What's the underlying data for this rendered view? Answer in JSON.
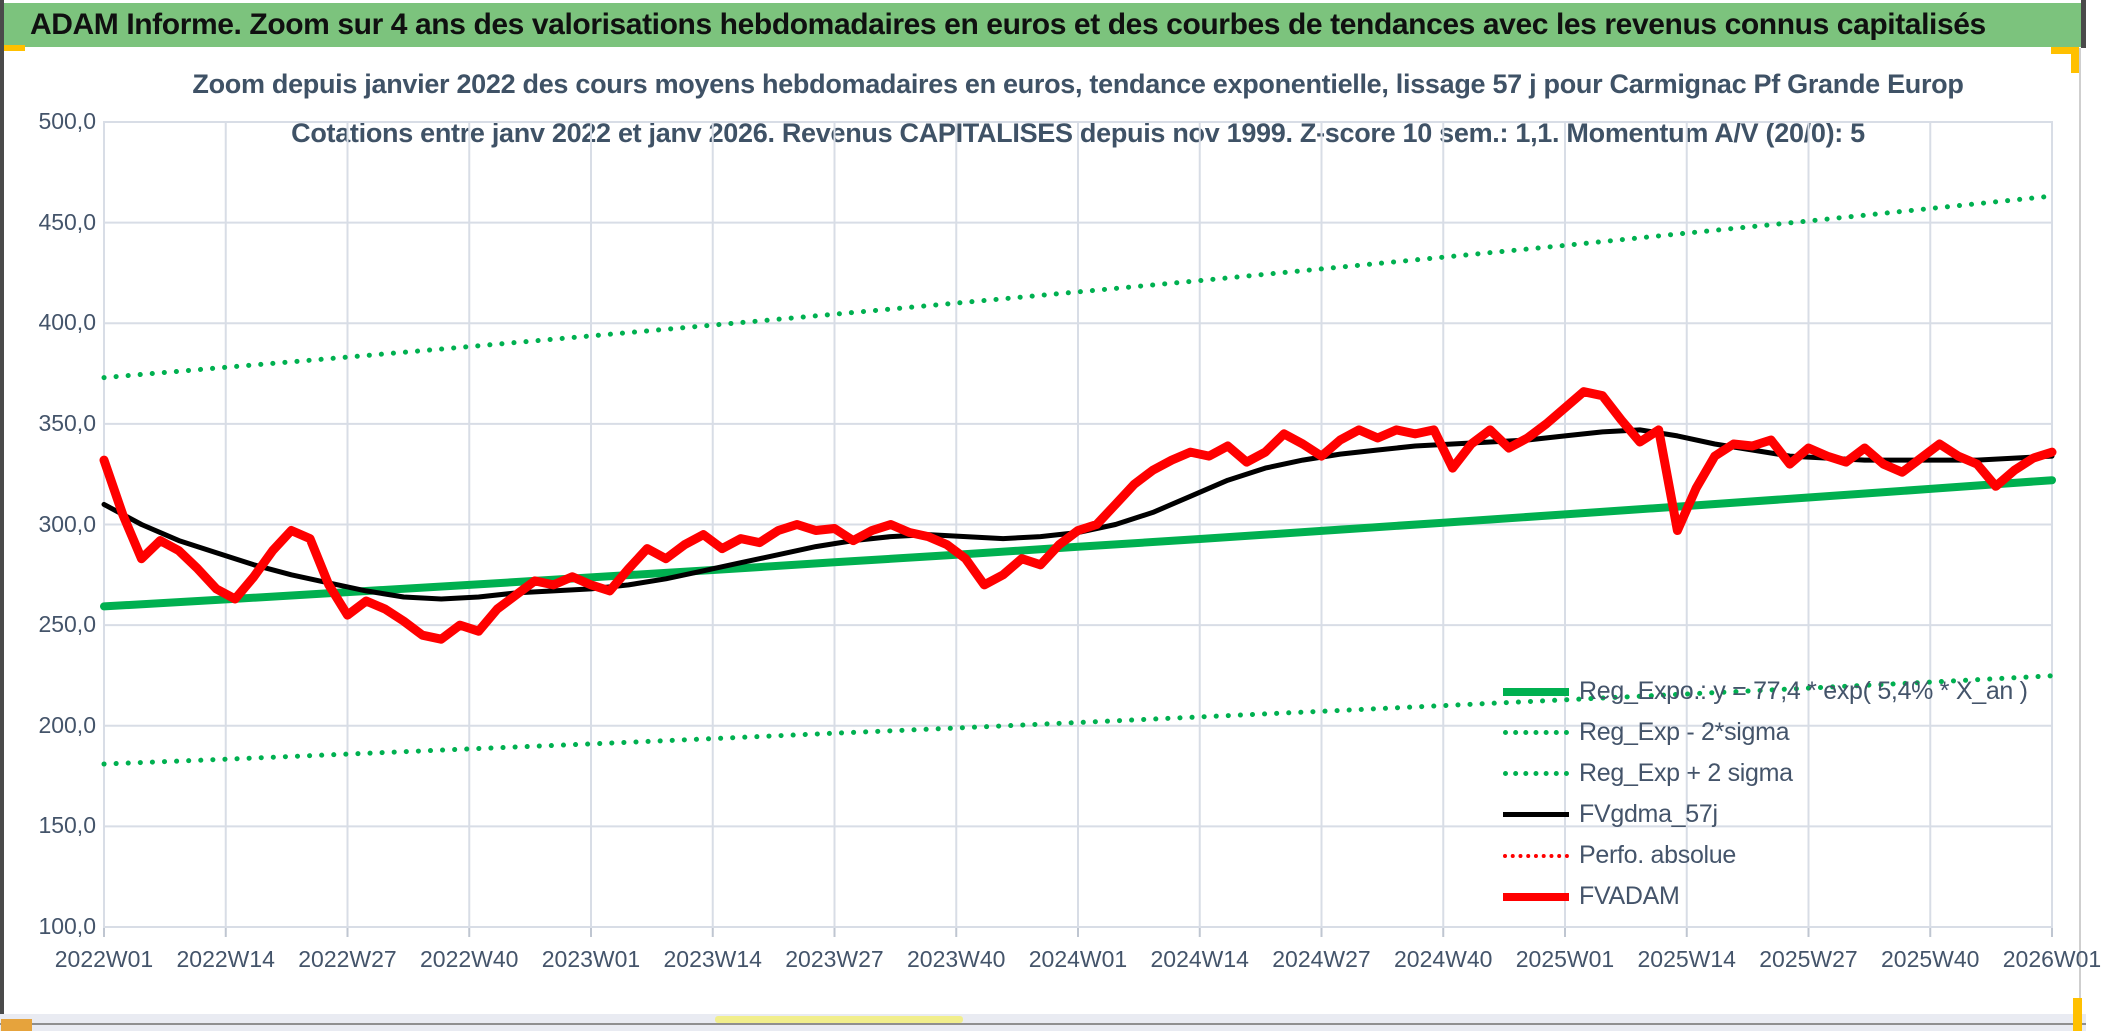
{
  "header": {
    "title": "ADAM Informe. Zoom sur 4 ans des valorisations hebdomadaires en euros et des courbes de tendances avec les revenus connus capitalisés",
    "bg_color": "#7CC37D"
  },
  "chart_data": {
    "type": "line",
    "title_line1": "Zoom depuis janvier 2022 des cours moyens hebdomadaires en euros, tendance exponentielle, lissage 57 j pour Carmignac Pf Grande Europ",
    "title_line2": "Cotations entre janv 2022 et janv 2026. Revenus CAPITALISES depuis nov 1999. Z-score 10 sem.: 1,1. Momentum A/V (20/0): 5",
    "grid": true,
    "legend_position": "inside-bottom-right",
    "x_axis": {
      "unit": "ISO week",
      "tick_labels": [
        "2022W01",
        "2022W14",
        "2022W27",
        "2022W40",
        "2023W01",
        "2023W14",
        "2023W27",
        "2023W40",
        "2024W01",
        "2024W14",
        "2024W27",
        "2024W40",
        "2025W01",
        "2025W14",
        "2025W27",
        "2025W40",
        "2026W01"
      ],
      "tick_weeks": [
        0,
        13,
        26,
        39,
        52,
        65,
        78,
        91,
        104,
        117,
        130,
        143,
        156,
        169,
        182,
        195,
        208
      ],
      "week_range": [
        0,
        208
      ]
    },
    "y_axis": {
      "tick_labels": [
        "500,0",
        "450,0",
        "400,0",
        "350,0",
        "300,0",
        "250,0",
        "200,0",
        "150,0",
        "100,0"
      ],
      "tick_values": [
        500,
        450,
        400,
        350,
        300,
        250,
        200,
        150,
        100
      ],
      "ylim": [
        100,
        500
      ]
    },
    "colors": {
      "green": "#00B050",
      "red": "#FF0000",
      "black": "#000000",
      "grid": "#D8DDE6",
      "tick_text": "#44546A"
    },
    "series": [
      {
        "name": "Reg_Expo.: y = 77,4 * exp( 5,4% * X_an )",
        "color": "#00B050",
        "style": "solid",
        "width": 8,
        "x_start": 0,
        "x_step": 13,
        "values": [
          259.3,
          262.8,
          266.4,
          270.0,
          273.7,
          277.4,
          281.2,
          285.0,
          288.9,
          292.8,
          296.8,
          300.9,
          305.0,
          309.2,
          313.4,
          317.7,
          322.0
        ]
      },
      {
        "name": "Reg_Exp - 2*sigma",
        "color": "#00B050",
        "style": "dotted",
        "width": 5,
        "x_start": 0,
        "x_step": 13,
        "values": [
          181.0,
          183.4,
          185.9,
          188.5,
          191.0,
          193.6,
          196.3,
          198.9,
          201.6,
          204.4,
          207.2,
          210.0,
          212.9,
          215.8,
          218.7,
          221.7,
          224.8
        ]
      },
      {
        "name": "Reg_Exp + 2 sigma",
        "color": "#00B050",
        "style": "dotted",
        "width": 5,
        "x_start": 0,
        "x_step": 13,
        "values": [
          373.0,
          378.1,
          383.2,
          388.4,
          393.7,
          399.1,
          404.5,
          410.0,
          415.6,
          421.2,
          427.0,
          432.8,
          438.7,
          444.8,
          450.8,
          457.0,
          463.2
        ]
      },
      {
        "name": "FVgdma_57j",
        "color": "#000000",
        "style": "solid",
        "width": 5,
        "x_start": 0,
        "x_step": 4,
        "values": [
          310,
          300,
          292,
          286,
          280,
          275,
          271,
          267,
          264,
          263,
          264,
          266,
          267,
          268,
          270,
          273,
          277,
          281,
          285,
          289,
          292,
          294,
          295,
          294,
          293,
          294,
          296,
          300,
          306,
          314,
          322,
          328,
          332,
          335,
          337,
          339,
          340,
          341,
          342,
          344,
          346,
          347,
          344,
          340,
          337,
          334,
          333,
          332,
          332,
          332,
          332,
          333,
          334
        ]
      },
      {
        "name": "Perfo. absolue",
        "color": "#FF0000",
        "style": "dotted",
        "width": 4,
        "x_start": 0,
        "x_step": 2,
        "values": []
      },
      {
        "name": "FVADAM",
        "color": "#FF0000",
        "style": "solid",
        "width": 9,
        "x_start": 0,
        "x_step": 2,
        "values": [
          332,
          305,
          283,
          292,
          287,
          278,
          268,
          263,
          274,
          287,
          297,
          293,
          270,
          255,
          262,
          258,
          252,
          245,
          243,
          250,
          247,
          258,
          265,
          272,
          270,
          274,
          270,
          267,
          278,
          288,
          283,
          290,
          295,
          288,
          293,
          291,
          297,
          300,
          297,
          298,
          292,
          297,
          300,
          296,
          294,
          290,
          283,
          270,
          275,
          283,
          280,
          290,
          297,
          300,
          310,
          320,
          327,
          332,
          336,
          334,
          339,
          331,
          336,
          345,
          340,
          334,
          342,
          347,
          343,
          347,
          345,
          347,
          328,
          340,
          347,
          338,
          343,
          350,
          358,
          366,
          364,
          352,
          341,
          347,
          297,
          318,
          334,
          340,
          339,
          342,
          330,
          338,
          334,
          331,
          338,
          330,
          326,
          333,
          340,
          334,
          330,
          319,
          327,
          333,
          336
        ]
      }
    ]
  },
  "decorations": {
    "accent_yellow": "#FFC000",
    "bottom_highlight_yellow": "#F1EE8C",
    "corner_orange": "#E6A33C"
  }
}
